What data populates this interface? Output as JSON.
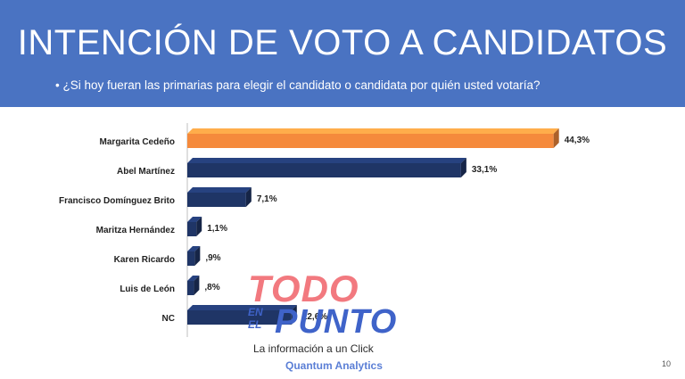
{
  "slide": {
    "title": "INTENCIÓN DE VOTO A CANDIDATOS",
    "question": "¿Si hoy fueran las primarias para elegir el candidato o candidata por quién usted votaría?",
    "source": "Quantum Analytics",
    "page_number": "10"
  },
  "watermark": {
    "word1": "TODO",
    "word2": "EN",
    "word3": "EL",
    "word4": "PUNTO",
    "tagline": "La información a un Click"
  },
  "colors": {
    "header": "#4a73c2",
    "highlight_bar": "#f58a3c",
    "bar": "#1f3566"
  },
  "chart_data": {
    "type": "bar",
    "orientation": "horizontal",
    "categories": [
      "Margarita Cedeño",
      "Abel Martínez",
      "Francisco Domínguez Brito",
      "Maritza Hernández",
      "Karen Ricardo",
      "Luis de León",
      "NC"
    ],
    "values": [
      44.3,
      33.1,
      7.1,
      1.1,
      0.9,
      0.8,
      12.6
    ],
    "value_labels": [
      "44,3%",
      "33,1%",
      "7,1%",
      "1,1%",
      ",9%",
      ",8%",
      "12,6%"
    ],
    "highlight_index": 0,
    "xlim": [
      0,
      48
    ],
    "grid": false,
    "legend": "none"
  }
}
